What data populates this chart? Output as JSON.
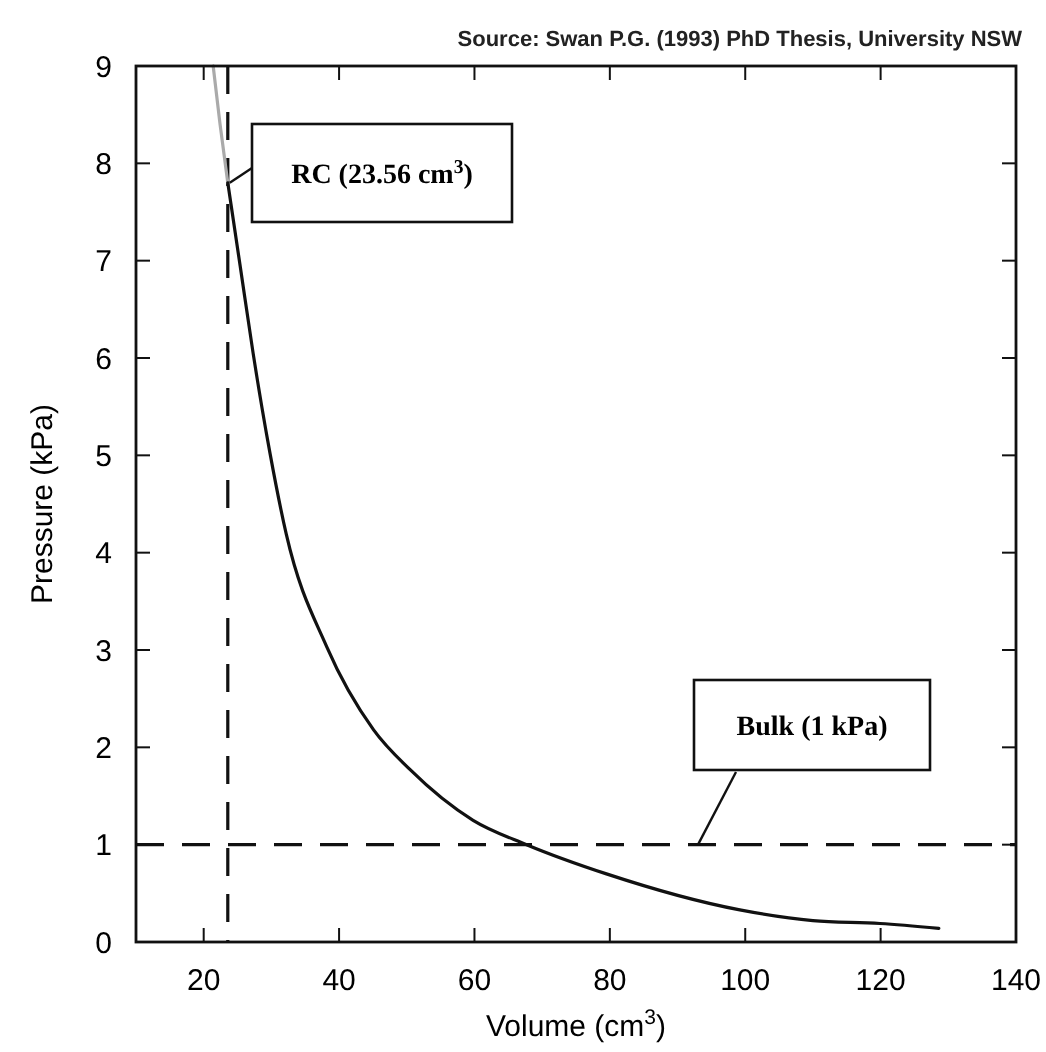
{
  "chart_data": {
    "type": "line",
    "xlabel": "Volume (cm$^{3}$)",
    "ylabel": "Pressure (kPa)",
    "annotations": [
      "Source:  Swan P.G. (1993) PhD Thesis, University NSW"
    ],
    "series": [
      {
        "color": "#aaaaaa",
        "x": [
          21.4,
          22.4,
          23.56
        ],
        "values": [
          9.0,
          8.41,
          7.8
        ]
      },
      {
        "color": "#111111",
        "x": [
          23.56,
          25.4,
          27.3,
          29.8,
          32.2,
          38.2,
          45.1,
          50.5,
          59.8,
          67.7,
          79.5,
          99.2,
          110,
          119.9,
          128.6
        ],
        "values": [
          7.8,
          6.94,
          6.05,
          5.02,
          4.19,
          3.03,
          2.18,
          1.77,
          1.25,
          1.0,
          0.7,
          0.33,
          0.22,
          0.19,
          0.14
        ]
      }
    ],
    "xlim": [
      10,
      140
    ],
    "xticks": [
      20,
      40,
      60,
      80,
      100,
      120,
      140
    ],
    "ylim": [
      0,
      9
    ],
    "yticks": [
      0,
      1,
      2,
      3,
      4,
      5,
      6,
      7,
      8,
      9
    ],
    "grid": false,
    "marker": "none",
    "line_style": "solid",
    "ref_lines": [
      {
        "axis": "x",
        "value": 23.56,
        "label": "RC (23.56 cm$^{3}$)",
        "line_style": "dashed"
      },
      {
        "axis": "y",
        "value": 1,
        "label": "Bulk (1 kPa)",
        "line_style": "dashed"
      }
    ]
  }
}
